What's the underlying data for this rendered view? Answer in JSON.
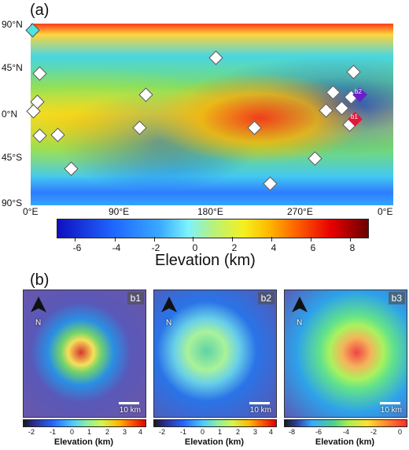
{
  "panel_a": "(a)",
  "panel_b": "(b)",
  "lat_labels": [
    "90°N",
    "45°N",
    "0°N",
    "45°S",
    "90°S"
  ],
  "lon_labels": [
    "0°E",
    "90°E",
    "180°E",
    "270°E",
    "0°E"
  ],
  "main_colorbar": {
    "ticks": [
      "-6",
      "-4",
      "-2",
      "0",
      "2",
      "4",
      "6",
      "8"
    ],
    "label": "Elevation (km)"
  },
  "map_tags": {
    "b1": "b1",
    "b2": "b2"
  },
  "insets": [
    {
      "id": "b1",
      "label": "b1",
      "north": "N",
      "scale": "10 km"
    },
    {
      "id": "b2",
      "label": "b2",
      "north": "N",
      "scale": "10 km"
    },
    {
      "id": "b3",
      "label": "b3",
      "north": "N",
      "scale": "10 km"
    }
  ],
  "small_colorbars": [
    {
      "ticks": [
        "-2",
        "-1",
        "0",
        "1",
        "2",
        "3",
        "4"
      ],
      "label": "Elevation (km)"
    },
    {
      "ticks": [
        "-2",
        "-1",
        "0",
        "1",
        "2",
        "3",
        "4"
      ],
      "label": "Elevation (km)"
    },
    {
      "ticks": [
        "-8",
        "-6",
        "-4",
        "-2",
        "0"
      ],
      "label": "Elevation (km)"
    }
  ],
  "icons": {
    "north_arrow": "north-arrow-icon",
    "marker": "diamond-marker-icon"
  },
  "colors": {
    "marker_default": "#ffffff",
    "marker_b1": "#e5163c",
    "marker_b2": "#6a1fc8",
    "marker_cyan": "#4fe3e3"
  }
}
